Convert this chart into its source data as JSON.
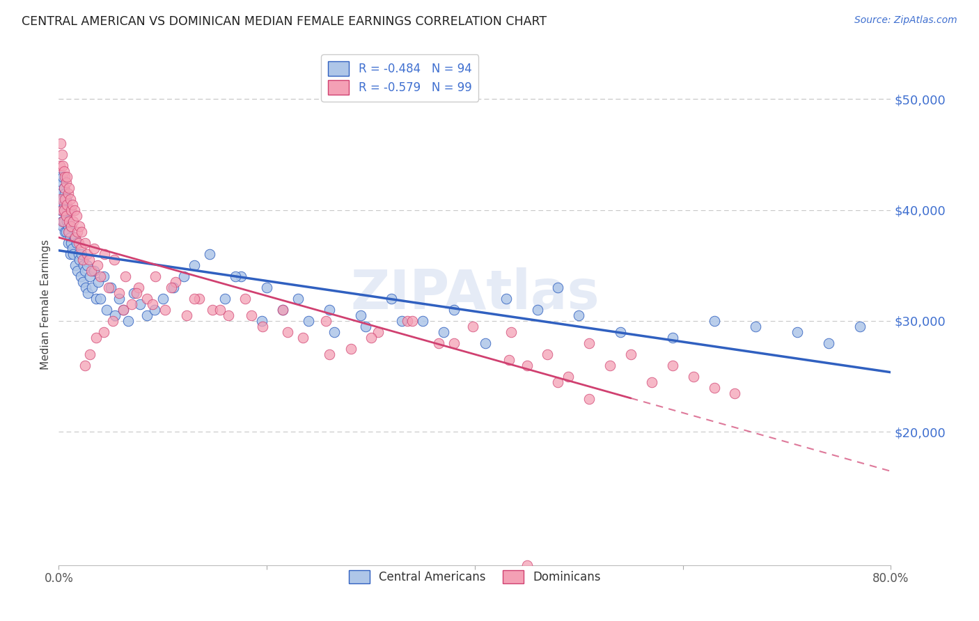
{
  "title": "CENTRAL AMERICAN VS DOMINICAN MEDIAN FEMALE EARNINGS CORRELATION CHART",
  "source": "Source: ZipAtlas.com",
  "ylabel": "Median Female Earnings",
  "ytick_labels": [
    "$50,000",
    "$40,000",
    "$30,000",
    "$20,000"
  ],
  "ytick_values": [
    50000,
    40000,
    30000,
    20000
  ],
  "legend_entries": [
    {
      "label": "R = -0.484   N = 94"
    },
    {
      "label": "R = -0.579   N = 99"
    }
  ],
  "legend_bottom": [
    "Central Americans",
    "Dominicans"
  ],
  "blue_scatter_color": "#aec6e8",
  "pink_scatter_color": "#f4a0b5",
  "blue_line_color": "#3060c0",
  "pink_line_color": "#d04070",
  "grid_color": "#c8c8c8",
  "axis_label_color": "#4070d0",
  "background_color": "#ffffff",
  "xmin": 0.0,
  "xmax": 0.8,
  "ymin": 8000,
  "ymax": 55000,
  "blue_x": [
    0.001,
    0.002,
    0.002,
    0.003,
    0.003,
    0.004,
    0.004,
    0.004,
    0.005,
    0.005,
    0.005,
    0.006,
    0.006,
    0.006,
    0.007,
    0.007,
    0.007,
    0.008,
    0.008,
    0.009,
    0.009,
    0.01,
    0.01,
    0.011,
    0.011,
    0.012,
    0.012,
    0.013,
    0.014,
    0.015,
    0.016,
    0.017,
    0.018,
    0.019,
    0.02,
    0.021,
    0.022,
    0.023,
    0.024,
    0.025,
    0.026,
    0.027,
    0.028,
    0.03,
    0.032,
    0.034,
    0.036,
    0.038,
    0.04,
    0.043,
    0.046,
    0.05,
    0.054,
    0.058,
    0.062,
    0.067,
    0.072,
    0.078,
    0.085,
    0.092,
    0.1,
    0.11,
    0.12,
    0.13,
    0.145,
    0.16,
    0.175,
    0.195,
    0.215,
    0.24,
    0.265,
    0.295,
    0.33,
    0.37,
    0.41,
    0.46,
    0.5,
    0.54,
    0.59,
    0.63,
    0.67,
    0.71,
    0.74,
    0.77,
    0.43,
    0.48,
    0.38,
    0.35,
    0.32,
    0.29,
    0.26,
    0.23,
    0.2,
    0.17
  ],
  "blue_y": [
    43000,
    41500,
    40000,
    42500,
    39000,
    43000,
    41000,
    38500,
    42000,
    40500,
    39000,
    41500,
    40000,
    38000,
    41000,
    39500,
    38000,
    40000,
    39000,
    38500,
    37000,
    40000,
    38000,
    37500,
    36000,
    38500,
    37000,
    36500,
    36000,
    37500,
    35000,
    37000,
    34500,
    36000,
    35500,
    34000,
    36000,
    33500,
    35000,
    34500,
    33000,
    35000,
    32500,
    34000,
    33000,
    34500,
    32000,
    33500,
    32000,
    34000,
    31000,
    33000,
    30500,
    32000,
    31000,
    30000,
    32500,
    31500,
    30500,
    31000,
    32000,
    33000,
    34000,
    35000,
    36000,
    32000,
    34000,
    30000,
    31000,
    30000,
    29000,
    29500,
    30000,
    29000,
    28000,
    31000,
    30500,
    29000,
    28500,
    30000,
    29500,
    29000,
    28000,
    29500,
    32000,
    33000,
    31000,
    30000,
    32000,
    30500,
    31000,
    32000,
    33000,
    34000
  ],
  "pink_x": [
    0.001,
    0.002,
    0.002,
    0.003,
    0.003,
    0.004,
    0.004,
    0.005,
    0.005,
    0.005,
    0.006,
    0.006,
    0.007,
    0.007,
    0.008,
    0.008,
    0.009,
    0.009,
    0.01,
    0.01,
    0.011,
    0.012,
    0.012,
    0.013,
    0.014,
    0.015,
    0.016,
    0.017,
    0.018,
    0.019,
    0.02,
    0.021,
    0.022,
    0.023,
    0.025,
    0.027,
    0.029,
    0.031,
    0.034,
    0.037,
    0.04,
    0.044,
    0.048,
    0.053,
    0.058,
    0.064,
    0.07,
    0.077,
    0.085,
    0.093,
    0.102,
    0.112,
    0.123,
    0.135,
    0.148,
    0.163,
    0.179,
    0.196,
    0.215,
    0.235,
    0.257,
    0.281,
    0.307,
    0.335,
    0.365,
    0.398,
    0.433,
    0.435,
    0.47,
    0.49,
    0.51,
    0.53,
    0.55,
    0.57,
    0.59,
    0.61,
    0.63,
    0.65,
    0.45,
    0.48,
    0.51,
    0.38,
    0.34,
    0.3,
    0.26,
    0.22,
    0.185,
    0.155,
    0.13,
    0.108,
    0.09,
    0.075,
    0.062,
    0.052,
    0.043,
    0.036,
    0.03,
    0.025,
    0.45
  ],
  "pink_y": [
    44000,
    46000,
    41000,
    45000,
    40000,
    44000,
    39000,
    43500,
    42000,
    40000,
    43000,
    41000,
    42500,
    39500,
    43000,
    40500,
    41500,
    38000,
    42000,
    39000,
    41000,
    40000,
    38500,
    40500,
    39000,
    40000,
    37500,
    39500,
    38000,
    37000,
    38500,
    36500,
    38000,
    35500,
    37000,
    36000,
    35500,
    34500,
    36500,
    35000,
    34000,
    36000,
    33000,
    35500,
    32500,
    34000,
    31500,
    33000,
    32000,
    34000,
    31000,
    33500,
    30500,
    32000,
    31000,
    30500,
    32000,
    29500,
    31000,
    28500,
    30000,
    27500,
    29000,
    30000,
    28000,
    29500,
    26500,
    29000,
    27000,
    25000,
    28000,
    26000,
    27000,
    24500,
    26000,
    25000,
    24000,
    23500,
    26000,
    24500,
    23000,
    28000,
    30000,
    28500,
    27000,
    29000,
    30500,
    31000,
    32000,
    33000,
    31500,
    32500,
    31000,
    30000,
    29000,
    28500,
    27000,
    26000,
    8000
  ]
}
